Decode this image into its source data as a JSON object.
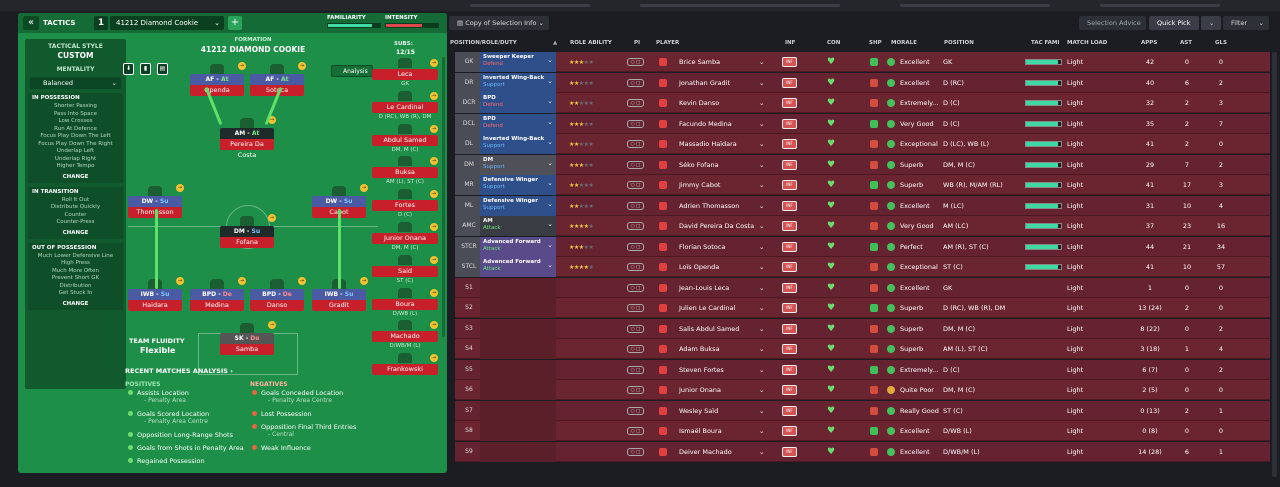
{
  "tactics": {
    "back_icon": "double-chevron-left-icon",
    "label": "TACTICS",
    "slot_number": "1",
    "tactic_name": "41212 Diamond Cookie",
    "plus": "+",
    "familiarity_label": "FAMILIARITY",
    "intensity_label": "INTENSITY",
    "familiarity_level": 0.85,
    "intensity_level": 0.7,
    "style_heading": "TACTICAL STYLE",
    "style_value": "CUSTOM",
    "mentality_heading": "MENTALITY",
    "mentality_value": "Balanced",
    "in_possession": {
      "title": "IN POSSESSION",
      "items": [
        "Shorter Passing",
        "Pass Into Space",
        "Low Crosses",
        "Run At Defence",
        "Focus Play Down The Left",
        "Focus Play Down The Right",
        "Underlap Left",
        "Underlap Right",
        "Higher Tempo"
      ],
      "change": "CHANGE"
    },
    "in_transition": {
      "title": "IN TRANSITION",
      "items": [
        "Roll It Out",
        "Distribute Quickly",
        "Counter",
        "Counter-Press"
      ],
      "change": "CHANGE"
    },
    "out_of_possession": {
      "title": "OUT OF POSSESSION",
      "items": [
        "Much Lower Defensive Line",
        "High Press",
        "Much More Often",
        "Prevent Short GK",
        "Distribution",
        "Get Stuck In"
      ],
      "change": "CHANGE"
    },
    "formation_heading": "FORMATION",
    "formation_name": "41212 DIAMOND COOKIE",
    "analysis_label": "Analysis",
    "fluidity_label": "TEAM FLUIDITY",
    "fluidity_value": "Flexible",
    "subs_label": "SUBS:",
    "subs_count": "12/15",
    "pitch_players": [
      {
        "role": "AF",
        "duty": "At",
        "name": "Openda"
      },
      {
        "role": "AF",
        "duty": "At",
        "name": "Sotoca"
      },
      {
        "role": "AM",
        "duty": "At",
        "name": "Pereira Da Costa"
      },
      {
        "role": "DW",
        "duty": "Su",
        "name": "Thomasson"
      },
      {
        "role": "DW",
        "duty": "Su",
        "name": "Cabot"
      },
      {
        "role": "DM",
        "duty": "Su",
        "name": "Fofana"
      },
      {
        "role": "IWB",
        "duty": "Su",
        "name": "Haidara"
      },
      {
        "role": "BPD",
        "duty": "De",
        "name": "Medina"
      },
      {
        "role": "BPD",
        "duty": "De",
        "name": "Danso"
      },
      {
        "role": "IWB",
        "duty": "Su",
        "name": "Gradit"
      },
      {
        "role": "SK",
        "duty": "De",
        "name": "Samba"
      }
    ],
    "subs": [
      {
        "name": "Leca",
        "pos": "GK"
      },
      {
        "name": "Le Cardinal",
        "pos": "D (RC), WB (R), DM"
      },
      {
        "name": "Abdul Samed",
        "pos": "DM, M (C)"
      },
      {
        "name": "Buksa",
        "pos": "AM (L), ST (C)"
      },
      {
        "name": "Fortes",
        "pos": "D (C)"
      },
      {
        "name": "Junior Onana",
        "pos": "DM, M (C)"
      },
      {
        "name": "Said",
        "pos": "ST (C)"
      },
      {
        "name": "Boura",
        "pos": "D/WB (L)"
      },
      {
        "name": "Machado",
        "pos": "D/WB/M (L)"
      },
      {
        "name": "Frankowski",
        "pos": ""
      }
    ],
    "recent_label": "RECENT MATCHES ANALYSIS",
    "positives_label": "POSITIVES",
    "negatives_label": "NEGATIVES",
    "positives": [
      {
        "text": "Assists Location",
        "sub": "- Penalty Area"
      },
      {
        "text": "Goals Scored Location",
        "sub": "- Penalty Area Centre"
      },
      {
        "text": "Opposition Long-Range Shots",
        "sub": ""
      },
      {
        "text": "Goals from Shots in Penalty Area",
        "sub": ""
      },
      {
        "text": "Regained Possession",
        "sub": ""
      }
    ],
    "negatives": [
      {
        "text": "Goals Conceded Location",
        "sub": "- Penalty Area Centre"
      },
      {
        "text": "Lost Possession",
        "sub": ""
      },
      {
        "text": "Opposition Final Third Entries",
        "sub": "- Central"
      },
      {
        "text": "Weak Influence",
        "sub": ""
      }
    ]
  },
  "toolbar": {
    "copy_label": "Copy of Selection Info",
    "selection_advice": "Selection Advice",
    "quick_pick": "Quick Pick",
    "filter": "Filter"
  },
  "columns": {
    "pos": "POSITION/ROLE/DUTY",
    "role_ability": "ROLE ABILITY",
    "pi": "PI",
    "player": "PLAYER",
    "inf": "INF",
    "con": "CON",
    "shp": "SHP",
    "morale": "MORALE",
    "position": "POSITION",
    "tac_fam": "TAC FAMI",
    "match_load": "MATCH LOAD",
    "apps": "APPS",
    "ast": "AST",
    "gls": "GLS"
  },
  "rows": [
    {
      "pos": "GK",
      "role": "Sweeper Keeper",
      "duty": "Defend",
      "stars": "★★★",
      "player": "Brice Samba",
      "morale": "Excellent",
      "position": "GK",
      "load": "Light",
      "apps": "42",
      "ast": "0",
      "gls": "0"
    },
    {
      "pos": "DR",
      "role": "Inverted Wing-Back",
      "duty": "Support",
      "stars": "★★",
      "player": "Jonathan Gradit",
      "morale": "Excellent",
      "position": "D (RC)",
      "load": "Light",
      "apps": "40",
      "ast": "6",
      "gls": "2"
    },
    {
      "pos": "DCR",
      "role": "BPD",
      "duty": "Defend",
      "stars": "★★",
      "player": "Kevin Danso",
      "morale": "Extremely...",
      "position": "D (C)",
      "load": "Light",
      "apps": "32",
      "ast": "2",
      "gls": "3"
    },
    {
      "pos": "DCL",
      "role": "BPD",
      "duty": "Defend",
      "stars": "★★★",
      "player": "Facundo Medina",
      "morale": "Very Good",
      "position": "D (C)",
      "load": "Light",
      "apps": "35",
      "ast": "2",
      "gls": "7"
    },
    {
      "pos": "DL",
      "role": "Inverted Wing-Back",
      "duty": "Support",
      "stars": "★★",
      "player": "Massadio Haïdara",
      "morale": "Exceptional",
      "position": "D (LC), WB (L)",
      "load": "Light",
      "apps": "41",
      "ast": "2",
      "gls": "0"
    },
    {
      "pos": "DM",
      "role": "DM",
      "duty": "Support",
      "stars": "★★★",
      "player": "Séko Fofana",
      "morale": "Superb",
      "position": "DM, M (C)",
      "load": "Light",
      "apps": "29",
      "ast": "7",
      "gls": "2"
    },
    {
      "pos": "MR",
      "role": "Defensive Winger",
      "duty": "Support",
      "stars": "★★",
      "player": "Jimmy Cabot",
      "morale": "Superb",
      "position": "WB (R), M/AM (RL)",
      "load": "Light",
      "apps": "41",
      "ast": "17",
      "gls": "3"
    },
    {
      "pos": "ML",
      "role": "Defensive Winger",
      "duty": "Support",
      "stars": "★★",
      "player": "Adrien Thomasson",
      "morale": "Excellent",
      "position": "M (LC)",
      "load": "Light",
      "apps": "31",
      "ast": "10",
      "gls": "4"
    },
    {
      "pos": "AMC",
      "role": "AM",
      "duty": "Attack",
      "stars": "★★★★",
      "player": "David Pereira Da Costa",
      "morale": "Very Good",
      "position": "AM (LC)",
      "load": "Light",
      "apps": "37",
      "ast": "23",
      "gls": "16"
    },
    {
      "pos": "STCR",
      "role": "Advanced Forward",
      "duty": "Attack",
      "stars": "★★★",
      "player": "Florian Sotoca",
      "morale": "Perfect",
      "position": "AM (R), ST (C)",
      "load": "Light",
      "apps": "44",
      "ast": "21",
      "gls": "34"
    },
    {
      "pos": "STCL",
      "role": "Advanced Forward",
      "duty": "Attack",
      "stars": "★★★★",
      "player": "Loïs Openda",
      "morale": "Exceptional",
      "position": "ST (C)",
      "load": "Light",
      "apps": "41",
      "ast": "10",
      "gls": "57"
    },
    {
      "pos": "S1",
      "role": "",
      "duty": "",
      "stars": "",
      "player": "Jean-Louis Leca",
      "morale": "Excellent",
      "position": "GK",
      "load": "Light",
      "apps": "1",
      "ast": "0",
      "gls": "0"
    },
    {
      "pos": "S2",
      "role": "",
      "duty": "",
      "stars": "",
      "player": "Julien Le Cardinal",
      "morale": "Superb",
      "position": "D (RC), WB (R), DM",
      "load": "Light",
      "apps": "13 (24)",
      "ast": "2",
      "gls": "0"
    },
    {
      "pos": "S3",
      "role": "",
      "duty": "",
      "stars": "",
      "player": "Salis Abdul Samed",
      "morale": "Superb",
      "position": "DM, M (C)",
      "load": "Light",
      "apps": "8 (22)",
      "ast": "0",
      "gls": "2"
    },
    {
      "pos": "S4",
      "role": "",
      "duty": "",
      "stars": "",
      "player": "Adam Buksa",
      "morale": "Superb",
      "position": "AM (L), ST (C)",
      "load": "Light",
      "apps": "3 (18)",
      "ast": "1",
      "gls": "4"
    },
    {
      "pos": "S5",
      "role": "",
      "duty": "",
      "stars": "",
      "player": "Steven Fortes",
      "morale": "Extremely...",
      "position": "D (C)",
      "load": "Light",
      "apps": "6 (7)",
      "ast": "0",
      "gls": "2"
    },
    {
      "pos": "S6",
      "role": "",
      "duty": "",
      "stars": "",
      "player": "Junior Onana",
      "morale": "Quite Poor",
      "position": "DM, M (C)",
      "load": "Light",
      "apps": "2 (5)",
      "ast": "0",
      "gls": "0"
    },
    {
      "pos": "S7",
      "role": "",
      "duty": "",
      "stars": "",
      "player": "Wesley Saïd",
      "morale": "Really Good",
      "position": "ST (C)",
      "load": "Light",
      "apps": "0 (13)",
      "ast": "2",
      "gls": "1"
    },
    {
      "pos": "S8",
      "role": "",
      "duty": "",
      "stars": "",
      "player": "Ismaël Boura",
      "morale": "Excellent",
      "position": "D/WB (L)",
      "load": "Light",
      "apps": "0 (8)",
      "ast": "0",
      "gls": "0"
    },
    {
      "pos": "S9",
      "role": "",
      "duty": "",
      "stars": "",
      "player": "Deiver Machado",
      "morale": "Excellent",
      "position": "D/WB/M (L)",
      "load": "Light",
      "apps": "14 (28)",
      "ast": "6",
      "gls": "1"
    }
  ],
  "colors": {
    "defend": "#ff6b6b",
    "support": "#6cb8ff",
    "attack": "#6be37a",
    "star": "#f4c542",
    "row_bg": "#6a2530"
  }
}
